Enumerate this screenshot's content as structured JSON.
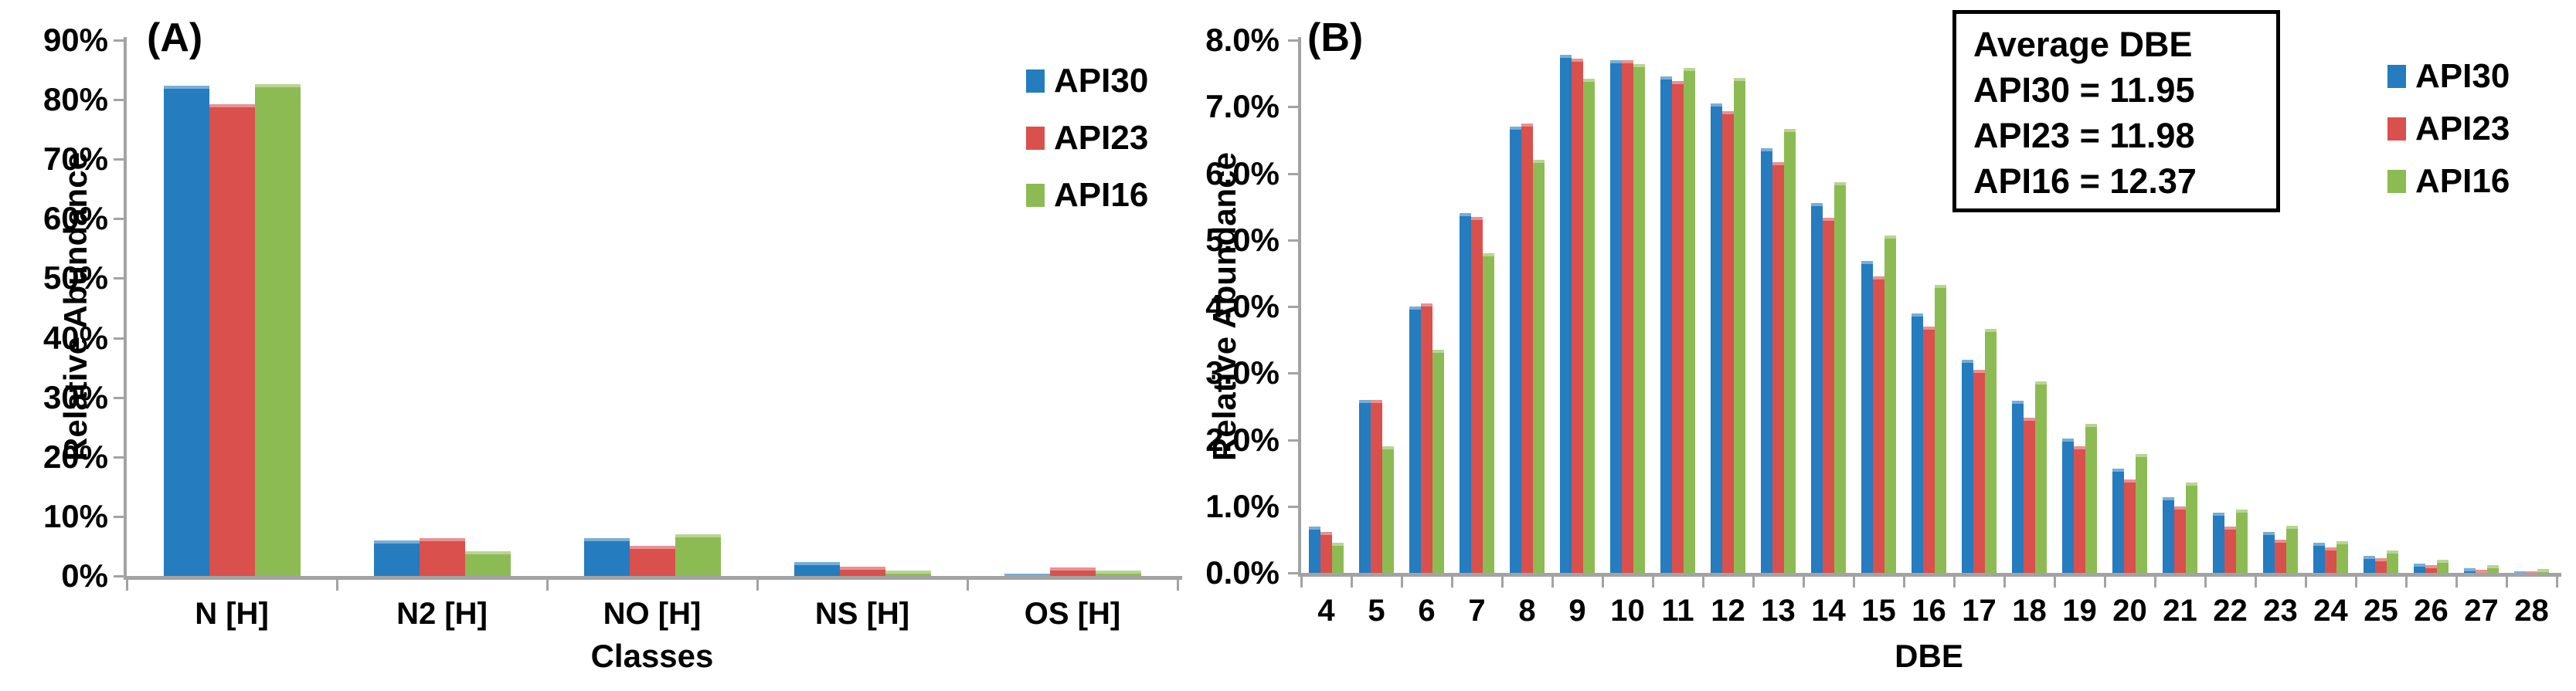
{
  "colors": {
    "api30": "#257CBE",
    "api23": "#D9504D",
    "api16": "#8DBB53",
    "axis": "#A3A3A3",
    "text": "#000000",
    "annotation_border": "#000000",
    "background": "#FFFFFF"
  },
  "chart_data": [
    {
      "type": "bar",
      "panel_label": "(A)",
      "xlabel": "Classes",
      "ylabel": "Relative Abundance",
      "ylim": [
        0,
        90
      ],
      "ytick_step": 10,
      "ytick_decimals": 0,
      "ytick_suffix": "%",
      "grid": false,
      "legend_position": "right-top",
      "categories": [
        "N [H]",
        "N2 [H]",
        "NO [H]",
        "NS [H]",
        "OS [H]"
      ],
      "series": [
        {
          "name": "API30",
          "color": "#257CBE",
          "values": [
            82.4,
            6.0,
            6.4,
            2.3,
            0.4
          ]
        },
        {
          "name": "API23",
          "color": "#D9504D",
          "values": [
            79.2,
            6.3,
            5.0,
            1.6,
            1.4
          ]
        },
        {
          "name": "API16",
          "color": "#8DBB53",
          "values": [
            82.6,
            4.1,
            7.0,
            0.9,
            0.9
          ]
        }
      ]
    },
    {
      "type": "bar",
      "panel_label": "(B)",
      "xlabel": "DBE",
      "ylabel": "Relative Abundance",
      "ylim": [
        0,
        8
      ],
      "ytick_step": 1,
      "ytick_decimals": 1,
      "ytick_suffix": "%",
      "grid": false,
      "legend_position": "right-top",
      "categories": [
        "4",
        "5",
        "6",
        "7",
        "8",
        "9",
        "10",
        "11",
        "12",
        "13",
        "14",
        "15",
        "16",
        "17",
        "18",
        "19",
        "20",
        "21",
        "22",
        "23",
        "24",
        "25",
        "26",
        "27",
        "28"
      ],
      "series": [
        {
          "name": "API30",
          "color": "#257CBE",
          "values": [
            0.7,
            2.6,
            4.0,
            5.4,
            6.7,
            7.78,
            7.7,
            7.45,
            7.05,
            6.38,
            5.55,
            4.68,
            3.9,
            3.2,
            2.58,
            2.02,
            1.56,
            1.14,
            0.9,
            0.61,
            0.45,
            0.26,
            0.14,
            0.07,
            0.02
          ]
        },
        {
          "name": "API23",
          "color": "#D9504D",
          "values": [
            0.62,
            2.6,
            4.05,
            5.35,
            6.75,
            7.72,
            7.7,
            7.38,
            6.93,
            6.17,
            5.33,
            4.45,
            3.7,
            3.05,
            2.33,
            1.9,
            1.4,
            1.0,
            0.7,
            0.5,
            0.38,
            0.22,
            0.12,
            0.05,
            0.02
          ]
        },
        {
          "name": "API16",
          "color": "#8DBB53",
          "values": [
            0.45,
            1.9,
            3.35,
            4.8,
            6.2,
            7.42,
            7.64,
            7.58,
            7.43,
            6.67,
            5.87,
            5.07,
            4.32,
            3.66,
            2.88,
            2.24,
            1.78,
            1.36,
            0.95,
            0.71,
            0.47,
            0.34,
            0.2,
            0.12,
            0.06
          ]
        }
      ],
      "annotation": {
        "title": "Average DBE",
        "lines": [
          "API30 = 11.95",
          "API23 = 11.98",
          "API16 = 12.37"
        ]
      }
    }
  ]
}
